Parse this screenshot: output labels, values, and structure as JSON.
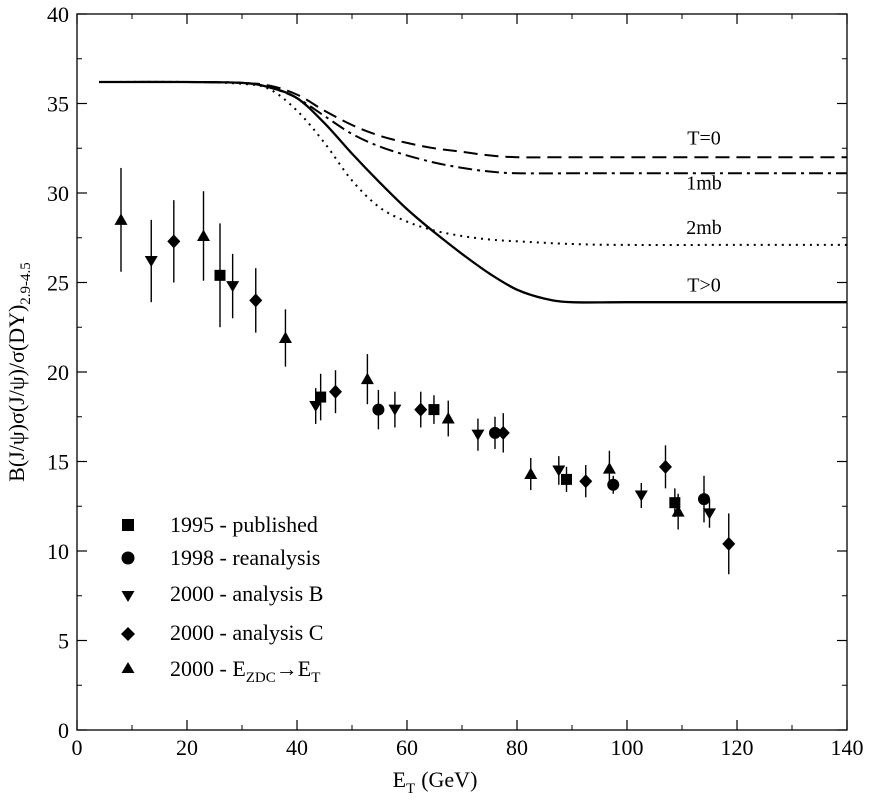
{
  "chart_data": {
    "type": "scatter",
    "title": "",
    "xlabel": "E",
    "xlabel_sub": "T",
    "xlabel_unit": "(GeV)",
    "ylabel_main": "B(J/ψ)σ(J/ψ)/σ(DY)",
    "ylabel_sub": "2.9-4.5",
    "xlim": [
      0,
      140
    ],
    "ylim": [
      0,
      40
    ],
    "x_ticks": [
      0,
      20,
      40,
      60,
      80,
      100,
      120,
      140
    ],
    "y_ticks": [
      0,
      5,
      10,
      15,
      20,
      25,
      30,
      35,
      40
    ],
    "x_tick_labels": [
      "0",
      "20",
      "40",
      "60",
      "80",
      "100",
      "120",
      "140"
    ],
    "y_tick_labels": [
      "0",
      "5",
      "10",
      "15",
      "20",
      "25",
      "30",
      "35",
      "40"
    ],
    "legend_position": "bottom-left",
    "series": [
      {
        "name": "1995 - published",
        "marker": "square",
        "points": [
          {
            "x": 26.0,
            "y": 25.4,
            "err": 2.9
          },
          {
            "x": 44.3,
            "y": 18.6,
            "err": 1.3
          },
          {
            "x": 64.9,
            "y": 17.9,
            "err": 0.8
          },
          {
            "x": 89.0,
            "y": 14.0,
            "err": 0.7
          },
          {
            "x": 108.7,
            "y": 12.7,
            "err": 0.8
          }
        ]
      },
      {
        "name": "1998 - reanalysis",
        "marker": "circle",
        "points": [
          {
            "x": 54.8,
            "y": 17.9,
            "err": 1.1
          },
          {
            "x": 76.0,
            "y": 16.6,
            "err": 0.9
          },
          {
            "x": 97.5,
            "y": 13.7,
            "err": 0.5
          },
          {
            "x": 114.0,
            "y": 12.9,
            "err": 1.3
          }
        ]
      },
      {
        "name": "2000 - analysis B",
        "marker": "triangle-down",
        "points": [
          {
            "x": 13.5,
            "y": 26.2,
            "err": 2.3
          },
          {
            "x": 28.3,
            "y": 24.8,
            "err": 1.8
          },
          {
            "x": 43.4,
            "y": 18.1,
            "err": 1.0
          },
          {
            "x": 57.8,
            "y": 17.9,
            "err": 1.0
          },
          {
            "x": 72.9,
            "y": 16.5,
            "err": 0.9
          },
          {
            "x": 87.6,
            "y": 14.5,
            "err": 0.8
          },
          {
            "x": 102.6,
            "y": 13.1,
            "err": 0.7
          },
          {
            "x": 115.0,
            "y": 12.1,
            "err": 0.8
          }
        ]
      },
      {
        "name": "2000 - analysis C",
        "marker": "diamond",
        "points": [
          {
            "x": 17.6,
            "y": 27.3,
            "err": 2.3
          },
          {
            "x": 32.5,
            "y": 24.0,
            "err": 1.8
          },
          {
            "x": 47.0,
            "y": 18.9,
            "err": 1.2
          },
          {
            "x": 62.5,
            "y": 17.9,
            "err": 1.0
          },
          {
            "x": 77.5,
            "y": 16.6,
            "err": 1.1
          },
          {
            "x": 92.5,
            "y": 13.9,
            "err": 0.9
          },
          {
            "x": 107.0,
            "y": 14.7,
            "err": 1.2
          },
          {
            "x": 118.5,
            "y": 10.4,
            "err": 1.7
          }
        ]
      },
      {
        "name": "2000 - E",
        "name_sub1": "ZDC",
        "name_arrow": "→E",
        "name_sub2": "T",
        "marker": "triangle-up",
        "points": [
          {
            "x": 8.0,
            "y": 28.5,
            "err": 2.9
          },
          {
            "x": 23.0,
            "y": 27.6,
            "err": 2.5
          },
          {
            "x": 37.9,
            "y": 21.9,
            "err": 1.6
          },
          {
            "x": 52.8,
            "y": 19.6,
            "err": 1.4
          },
          {
            "x": 67.5,
            "y": 17.4,
            "err": 1.0
          },
          {
            "x": 82.5,
            "y": 14.3,
            "err": 0.9
          },
          {
            "x": 96.8,
            "y": 14.6,
            "err": 1.0
          },
          {
            "x": 109.3,
            "y": 12.2,
            "err": 1.0
          }
        ]
      }
    ],
    "curves": [
      {
        "label": "T=0",
        "style": "dashed",
        "x": [
          4,
          20,
          30,
          35,
          40,
          45,
          50,
          55,
          60,
          65,
          70,
          75,
          80,
          90,
          100,
          120,
          140
        ],
        "y": [
          36.2,
          36.2,
          36.15,
          36.0,
          35.5,
          34.6,
          33.8,
          33.2,
          32.8,
          32.5,
          32.3,
          32.1,
          32.0,
          32.0,
          32.0,
          32.0,
          32.0
        ]
      },
      {
        "label": "1mb",
        "style": "dash-dot",
        "x": [
          4,
          20,
          30,
          35,
          40,
          45,
          50,
          55,
          60,
          65,
          70,
          75,
          80,
          90,
          100,
          120,
          140
        ],
        "y": [
          36.2,
          36.2,
          36.15,
          35.9,
          35.3,
          34.3,
          33.3,
          32.6,
          32.1,
          31.7,
          31.4,
          31.2,
          31.1,
          31.1,
          31.1,
          31.1,
          31.1
        ]
      },
      {
        "label": "2mb",
        "style": "dotted",
        "x": [
          4,
          20,
          30,
          35,
          40,
          45,
          50,
          55,
          60,
          65,
          70,
          75,
          80,
          90,
          100,
          120,
          140
        ],
        "y": [
          36.2,
          36.2,
          36.1,
          35.8,
          34.6,
          32.8,
          30.7,
          29.2,
          28.4,
          27.9,
          27.6,
          27.4,
          27.3,
          27.15,
          27.1,
          27.1,
          27.1
        ]
      },
      {
        "label": "T>0",
        "style": "solid",
        "x": [
          4,
          20,
          30,
          35,
          40,
          45,
          50,
          55,
          60,
          65,
          70,
          75,
          80,
          85,
          90,
          100,
          120,
          140
        ],
        "y": [
          36.2,
          36.2,
          36.15,
          35.9,
          35.3,
          33.9,
          32.2,
          30.6,
          29.1,
          27.8,
          26.6,
          25.5,
          24.6,
          24.1,
          23.9,
          23.9,
          23.9,
          23.9
        ]
      }
    ],
    "curve_labels": [
      {
        "text": "T=0",
        "x": 114,
        "y": 32.7
      },
      {
        "text": "1mb",
        "x": 114,
        "y": 30.2
      },
      {
        "text": "2mb",
        "x": 114,
        "y": 27.7
      },
      {
        "text": "T>0",
        "x": 114,
        "y": 24.5
      }
    ]
  }
}
